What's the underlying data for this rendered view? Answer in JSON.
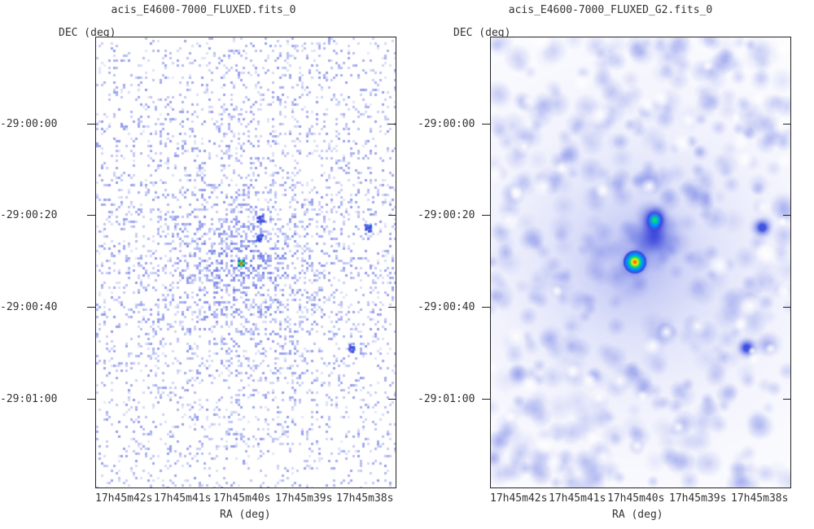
{
  "panels": [
    {
      "title": "acis_E4600-7000_FLUXED.fits_0",
      "y_axis_label": "DEC (deg)",
      "x_axis_label": "RA (deg)",
      "y_ticks": [
        "-29:00:00",
        "-29:00:20",
        "-29:00:40",
        "-29:01:00"
      ],
      "x_ticks": [
        "17h45m42s",
        "17h45m41s",
        "17h45m40s",
        "17h45m39s",
        "17h45m38s"
      ],
      "style": "raw-speckle",
      "colormap": "white-blue-green-yellow-red"
    },
    {
      "title": "acis_E4600-7000_FLUXED_G2.fits_0",
      "y_axis_label": "DEC (deg)",
      "x_axis_label": "RA (deg)",
      "y_ticks": [
        "-29:00:00",
        "-29:00:20",
        "-29:00:40",
        "-29:01:00"
      ],
      "x_ticks": [
        "17h45m42s",
        "17h45m41s",
        "17h45m40s",
        "17h45m39s",
        "17h45m38s"
      ],
      "style": "smoothed",
      "colormap": "white-blue-green-yellow-red"
    }
  ]
}
